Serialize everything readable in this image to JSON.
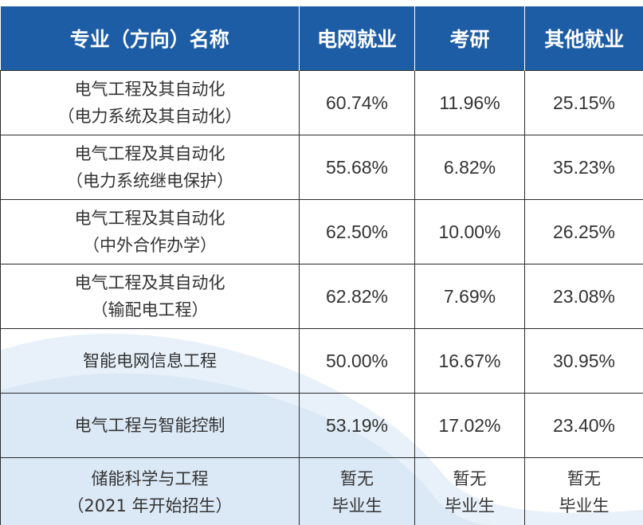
{
  "headers": [
    "专业（方向）名称",
    "电网就业",
    "考研",
    "其他就业"
  ],
  "rows": [
    {
      "name_line1": "电气工程及其自动化",
      "name_line2": "（电力系统及其自动化）",
      "grid": "60.74%",
      "postgrad": "11.96%",
      "other": "25.15%"
    },
    {
      "name_line1": "电气工程及其自动化",
      "name_line2": "（电力系统继电保护）",
      "grid": "55.68%",
      "postgrad": "6.82%",
      "other": "35.23%"
    },
    {
      "name_line1": "电气工程及其自动化",
      "name_line2": "（中外合作办学）",
      "grid": "62.50%",
      "postgrad": "10.00%",
      "other": "26.25%"
    },
    {
      "name_line1": "电气工程及其自动化",
      "name_line2": "（输配电工程）",
      "grid": "62.82%",
      "postgrad": "7.69%",
      "other": "23.08%"
    },
    {
      "name_line1": "智能电网信息工程",
      "name_line2": "",
      "grid": "50.00%",
      "postgrad": "16.67%",
      "other": "30.95%"
    },
    {
      "name_line1": "电气工程与智能控制",
      "name_line2": "",
      "grid": "53.19%",
      "postgrad": "17.02%",
      "other": "23.40%"
    }
  ],
  "last_row": {
    "name_line1": "储能科学与工程",
    "name_line2": "（2021 年开始招生）",
    "grid_line1": "暂无",
    "grid_line2": "毕业生",
    "postgrad_line1": "暂无",
    "postgrad_line2": "毕业生",
    "other_line1": "暂无",
    "other_line2": "毕业生"
  },
  "colors": {
    "header_bg": "#1d5da6",
    "header_text": "#ffffff",
    "body_text": "#333333",
    "wave_light": "#e8f1fa",
    "wave_mid": "#cfe0f2"
  }
}
